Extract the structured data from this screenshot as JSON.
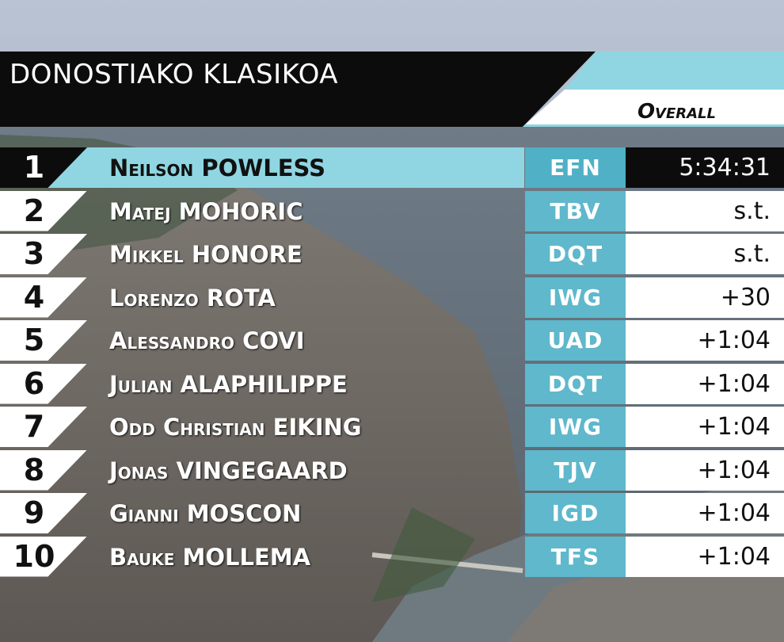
{
  "header": {
    "title": "DONOSTIAKO KLASIKOA",
    "subtitle": "Overall"
  },
  "colors": {
    "accent": "#8fd6e2",
    "team_bg": "#5fb8cc",
    "header_bg": "#0c0c0c"
  },
  "results": [
    {
      "pos": "1",
      "first": "Neilson",
      "last": "POWLESS",
      "team": "EFN",
      "time": "5:34:31"
    },
    {
      "pos": "2",
      "first": "Matej",
      "last": "MOHORIC",
      "team": "TBV",
      "time": "s.t."
    },
    {
      "pos": "3",
      "first": "Mikkel",
      "last": "HONORE",
      "team": "DQT",
      "time": "s.t."
    },
    {
      "pos": "4",
      "first": "Lorenzo",
      "last": "ROTA",
      "team": "IWG",
      "time": "+30"
    },
    {
      "pos": "5",
      "first": "Alessandro",
      "last": "COVI",
      "team": "UAD",
      "time": "+1:04"
    },
    {
      "pos": "6",
      "first": "Julian",
      "last": "ALAPHILIPPE",
      "team": "DQT",
      "time": "+1:04"
    },
    {
      "pos": "7",
      "first": "Odd Christian",
      "last": "EIKING",
      "team": "IWG",
      "time": "+1:04"
    },
    {
      "pos": "8",
      "first": "Jonas",
      "last": "VINGEGAARD",
      "team": "TJV",
      "time": "+1:04"
    },
    {
      "pos": "9",
      "first": "Gianni",
      "last": "MOSCON",
      "team": "IGD",
      "time": "+1:04"
    },
    {
      "pos": "10",
      "first": "Bauke",
      "last": "MOLLEMA",
      "team": "TFS",
      "time": "+1:04"
    }
  ]
}
